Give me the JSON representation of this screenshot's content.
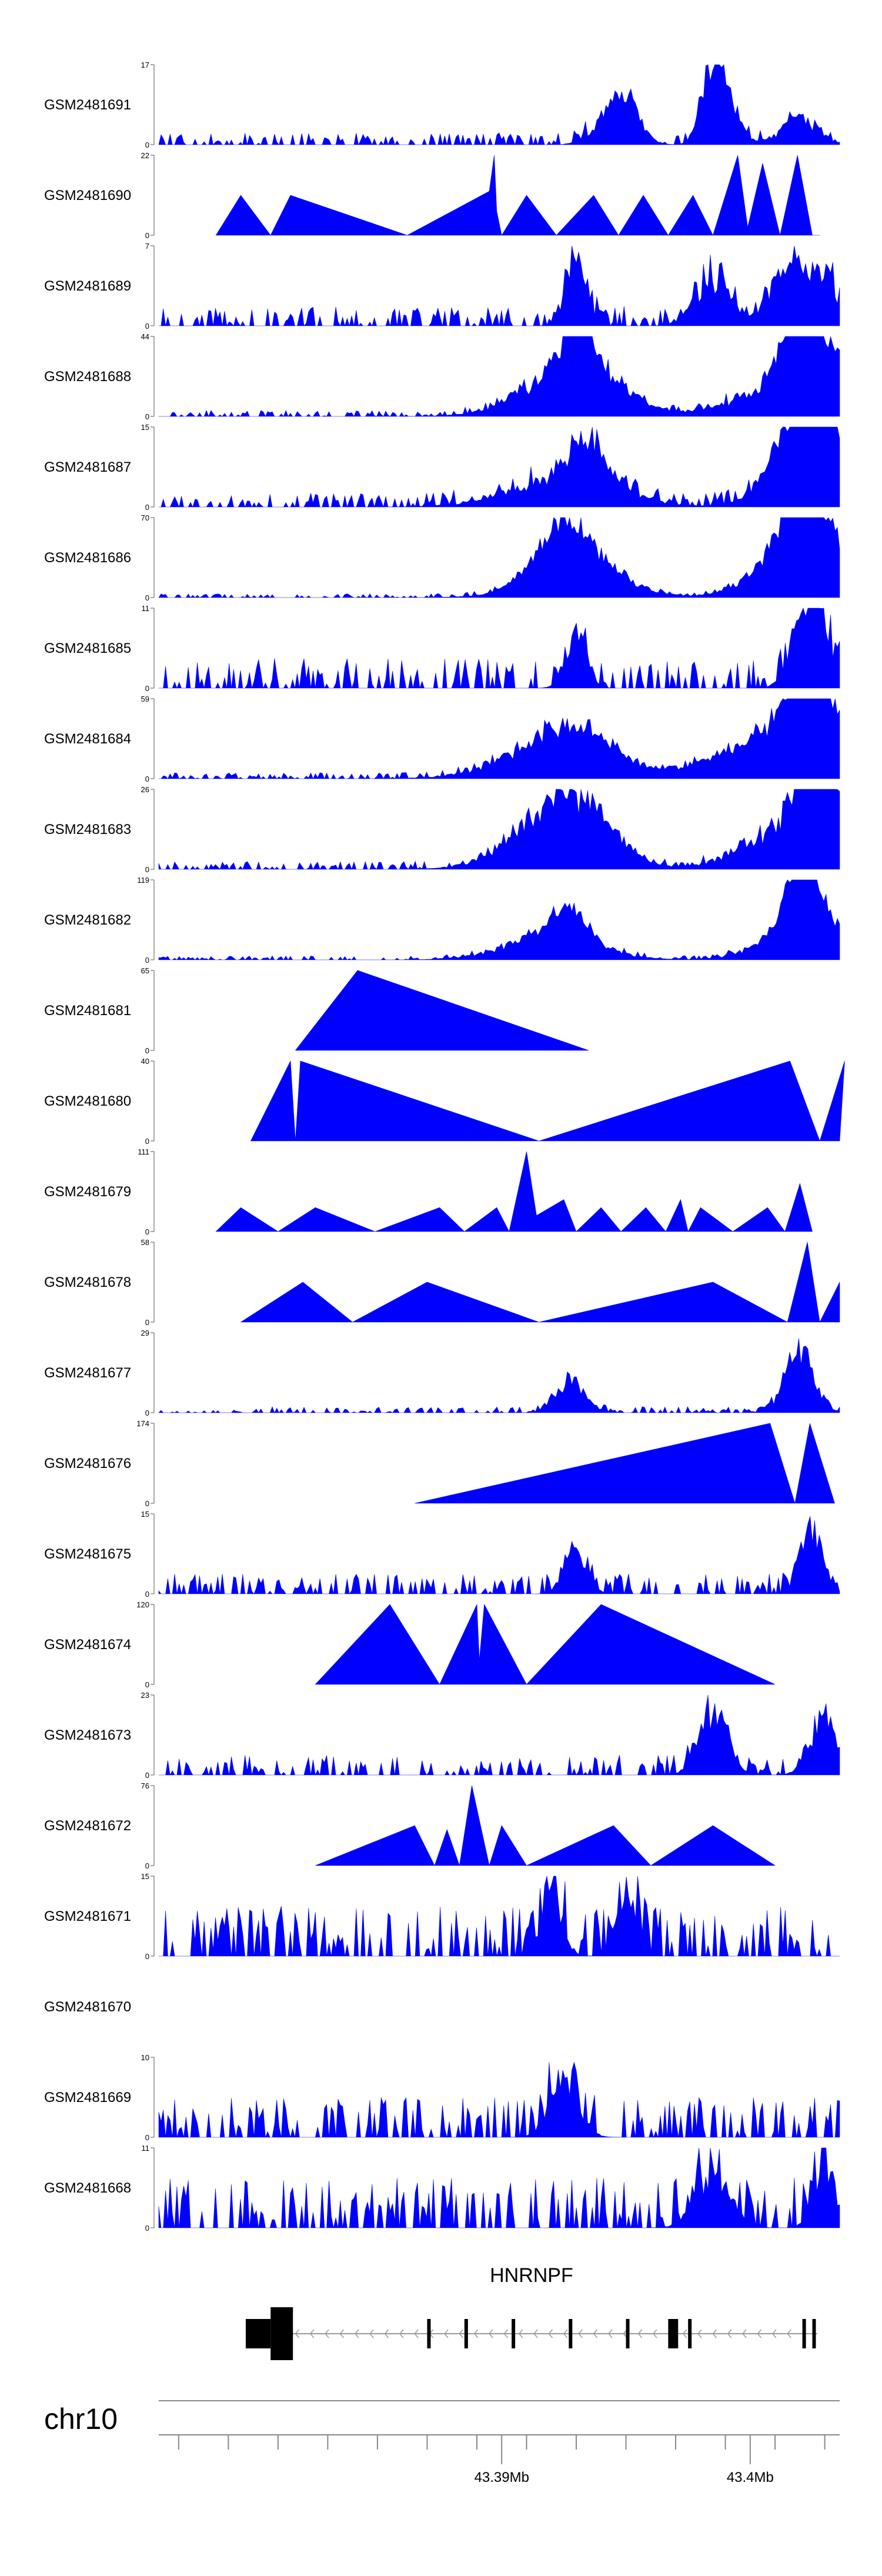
{
  "chart_data": {
    "type": "area",
    "title": "",
    "color": "#0000ff",
    "chromosome": "chr10",
    "gene": {
      "name": "HNRNPF",
      "strand": "-",
      "start_mb": 43.3797,
      "end_mb": 43.4027,
      "exons_mb": [
        [
          43.3797,
          43.3807
        ],
        [
          43.3807,
          43.3816
        ],
        [
          43.3885,
          43.3886
        ],
        [
          43.387,
          43.3871
        ],
        [
          43.3904,
          43.3905
        ],
        [
          43.3927,
          43.3928
        ],
        [
          43.395,
          43.3951
        ],
        [
          43.3967,
          43.3968
        ],
        [
          43.3968,
          43.3971
        ],
        [
          43.3975,
          43.3976
        ],
        [
          43.4021,
          43.4022
        ],
        [
          43.4025,
          43.4026
        ]
      ]
    },
    "genome_axis": {
      "range_mb": [
        43.3762,
        43.4036
      ],
      "tick_labels": [
        "43.39Mb",
        "43.4Mb"
      ],
      "labeled_ticks_mb": [
        43.39,
        43.4
      ],
      "minor_ticks_mb": [
        43.377,
        43.379,
        43.381,
        43.383,
        43.385,
        43.387,
        43.389,
        43.391,
        43.393,
        43.395,
        43.397,
        43.399,
        43.401,
        43.403
      ]
    },
    "tracks": [
      {
        "name": "GSM2481691",
        "ymax": 17,
        "ymin": 0,
        "kind": "noise",
        "seed": 11,
        "floor": 0.06,
        "peaks": [
          [
            43.3945,
            0.5,
            0.001
          ],
          [
            43.395,
            0.4,
            0.0008
          ],
          [
            43.3985,
            1.0,
            0.0006
          ],
          [
            43.399,
            0.55,
            0.0008
          ],
          [
            43.402,
            0.4,
            0.001
          ]
        ]
      },
      {
        "name": "GSM2481690",
        "ymax": 22,
        "ymin": 0,
        "kind": "poly",
        "pts": [
          [
            43.3785,
            0
          ],
          [
            43.3795,
            0.5
          ],
          [
            43.3807,
            0
          ],
          [
            43.3815,
            0.5
          ],
          [
            43.3862,
            0
          ],
          [
            43.3895,
            0.55
          ],
          [
            43.3897,
            1.0
          ],
          [
            43.3898,
            0.3
          ],
          [
            43.39,
            0
          ],
          [
            43.391,
            0.5
          ],
          [
            43.3922,
            0
          ],
          [
            43.3937,
            0.5
          ],
          [
            43.3947,
            0
          ],
          [
            43.3957,
            0.5
          ],
          [
            43.3967,
            0
          ],
          [
            43.3977,
            0.5
          ],
          [
            43.3985,
            0
          ],
          [
            43.3995,
            1.0
          ],
          [
            43.3999,
            0.1
          ],
          [
            43.4005,
            0.9
          ],
          [
            43.4012,
            0
          ],
          [
            43.4019,
            1.0
          ],
          [
            43.4025,
            0
          ],
          [
            43.4028,
            0
          ]
        ]
      },
      {
        "name": "GSM2481689",
        "ymax": 7,
        "ymin": 0,
        "kind": "noise",
        "seed": 23,
        "floor": 0.1,
        "peaks": [
          [
            43.393,
            1.0,
            0.0006
          ],
          [
            43.3985,
            0.7,
            0.001
          ],
          [
            43.4015,
            0.9,
            0.001
          ],
          [
            43.403,
            0.7,
            0.0008
          ]
        ]
      },
      {
        "name": "GSM2481688",
        "ymax": 44,
        "ymin": 0,
        "kind": "noise",
        "seed": 31,
        "floor": 0.03,
        "peaks": [
          [
            43.3925,
            0.6,
            0.0025
          ],
          [
            43.393,
            0.9,
            0.0008
          ],
          [
            43.394,
            0.3,
            0.002
          ],
          [
            43.401,
            0.4,
            0.0025
          ],
          [
            43.402,
            1.0,
            0.001
          ],
          [
            43.403,
            0.8,
            0.0015
          ]
        ]
      },
      {
        "name": "GSM2481687",
        "ymax": 15,
        "ymin": 0,
        "kind": "noise",
        "seed": 37,
        "floor": 0.07,
        "peaks": [
          [
            43.3925,
            0.45,
            0.003
          ],
          [
            43.3935,
            0.6,
            0.001
          ],
          [
            43.4015,
            0.6,
            0.0015
          ],
          [
            43.4025,
            1.0,
            0.0015
          ],
          [
            43.4032,
            0.7,
            0.001
          ]
        ]
      },
      {
        "name": "GSM2481686",
        "ymax": 70,
        "ymin": 0,
        "kind": "noise",
        "seed": 41,
        "floor": 0.02,
        "peaks": [
          [
            43.3925,
            0.7,
            0.0015
          ],
          [
            43.393,
            0.5,
            0.0025
          ],
          [
            43.4015,
            0.6,
            0.002
          ],
          [
            43.402,
            1.0,
            0.001
          ],
          [
            43.403,
            0.7,
            0.0015
          ]
        ]
      },
      {
        "name": "GSM2481685",
        "ymax": 11,
        "ymin": 0,
        "kind": "noise",
        "seed": 43,
        "floor": 0.15,
        "peaks": [
          [
            43.393,
            0.9,
            0.0006
          ],
          [
            43.4022,
            1.0,
            0.0008
          ],
          [
            43.403,
            0.6,
            0.001
          ]
        ]
      },
      {
        "name": "GSM2481684",
        "ymax": 59,
        "ymin": 0,
        "kind": "noise",
        "seed": 47,
        "floor": 0.03,
        "peaks": [
          [
            43.392,
            0.4,
            0.003
          ],
          [
            43.393,
            0.5,
            0.002
          ],
          [
            43.4,
            0.2,
            0.003
          ],
          [
            43.4015,
            0.5,
            0.003
          ],
          [
            43.4022,
            1.0,
            0.001
          ],
          [
            43.403,
            0.6,
            0.0015
          ]
        ]
      },
      {
        "name": "GSM2481683",
        "ymax": 26,
        "ymin": 0,
        "kind": "noise",
        "seed": 53,
        "floor": 0.04,
        "peaks": [
          [
            43.392,
            0.6,
            0.0025
          ],
          [
            43.393,
            0.7,
            0.002
          ],
          [
            43.4015,
            0.6,
            0.0025
          ],
          [
            43.4025,
            1.0,
            0.001
          ],
          [
            43.4032,
            0.8,
            0.001
          ]
        ]
      },
      {
        "name": "GSM2481682",
        "ymax": 119,
        "ymin": 0,
        "kind": "noise",
        "seed": 59,
        "floor": 0.02,
        "peaks": [
          [
            43.392,
            0.4,
            0.0025
          ],
          [
            43.3927,
            0.45,
            0.001
          ],
          [
            43.4015,
            0.3,
            0.002
          ],
          [
            43.402,
            1.0,
            0.0008
          ],
          [
            43.4028,
            0.6,
            0.0015
          ]
        ]
      },
      {
        "name": "GSM2481681",
        "ymax": 65,
        "ymin": 0,
        "kind": "poly",
        "pts": [
          [
            43.3817,
            0
          ],
          [
            43.3842,
            1.0
          ],
          [
            43.3935,
            0
          ]
        ]
      },
      {
        "name": "GSM2481680",
        "ymax": 40,
        "ymin": 0,
        "kind": "poly",
        "pts": [
          [
            43.3799,
            0
          ],
          [
            43.3815,
            1.0
          ],
          [
            43.3817,
            0
          ],
          [
            43.3819,
            1.0
          ],
          [
            43.3915,
            0
          ],
          [
            43.4016,
            1.0
          ],
          [
            43.4028,
            0
          ],
          [
            43.4038,
            1.0
          ],
          [
            43.4036,
            0
          ]
        ]
      },
      {
        "name": "GSM2481679",
        "ymax": 111,
        "ymin": 0,
        "kind": "poly",
        "pts": [
          [
            43.3785,
            0
          ],
          [
            43.3795,
            0.3
          ],
          [
            43.381,
            0
          ],
          [
            43.3825,
            0.3
          ],
          [
            43.3849,
            0
          ],
          [
            43.3875,
            0.3
          ],
          [
            43.3885,
            0
          ],
          [
            43.3898,
            0.3
          ],
          [
            43.3903,
            0
          ],
          [
            43.391,
            1.0
          ],
          [
            43.3914,
            0.2
          ],
          [
            43.3925,
            0.4
          ],
          [
            43.393,
            0
          ],
          [
            43.394,
            0.3
          ],
          [
            43.3948,
            0
          ],
          [
            43.3958,
            0.3
          ],
          [
            43.3966,
            0
          ],
          [
            43.3972,
            0.4
          ],
          [
            43.3975,
            0
          ],
          [
            43.398,
            0.3
          ],
          [
            43.3993,
            0
          ],
          [
            43.4007,
            0.3
          ],
          [
            43.4014,
            0
          ],
          [
            43.402,
            0.6
          ],
          [
            43.4025,
            0
          ]
        ]
      },
      {
        "name": "GSM2481678",
        "ymax": 58,
        "ymin": 0,
        "kind": "poly",
        "pts": [
          [
            43.3795,
            0
          ],
          [
            43.382,
            0.5
          ],
          [
            43.384,
            0
          ],
          [
            43.387,
            0.5
          ],
          [
            43.3915,
            0
          ],
          [
            43.3985,
            0.5
          ],
          [
            43.4015,
            0
          ],
          [
            43.4023,
            1.0
          ],
          [
            43.4028,
            0
          ],
          [
            43.4036,
            0.5
          ]
        ]
      },
      {
        "name": "GSM2481677",
        "ymax": 29,
        "ymin": 0,
        "kind": "noise",
        "seed": 67,
        "floor": 0.03,
        "peaks": [
          [
            43.3928,
            0.5,
            0.0008
          ],
          [
            43.402,
            1.0,
            0.0008
          ]
        ]
      },
      {
        "name": "GSM2481676",
        "ymax": 174,
        "ymin": 0,
        "kind": "poly",
        "pts": [
          [
            43.3865,
            0
          ],
          [
            43.4008,
            1.0
          ],
          [
            43.4018,
            0
          ],
          [
            43.4024,
            1.0
          ],
          [
            43.4034,
            0
          ]
        ]
      },
      {
        "name": "GSM2481675",
        "ymax": 15,
        "ymin": 0,
        "kind": "noise",
        "seed": 71,
        "floor": 0.1,
        "peaks": [
          [
            43.393,
            0.7,
            0.0006
          ],
          [
            43.4025,
            1.0,
            0.0006
          ]
        ]
      },
      {
        "name": "GSM2481674",
        "ymax": 120,
        "ymin": 0,
        "kind": "poly",
        "pts": [
          [
            43.3825,
            0
          ],
          [
            43.3855,
            1.0
          ],
          [
            43.3875,
            0
          ],
          [
            43.389,
            1.0
          ],
          [
            43.3891,
            0.3
          ],
          [
            43.3893,
            1.0
          ],
          [
            43.391,
            0
          ],
          [
            43.394,
            1.0
          ],
          [
            43.401,
            0
          ]
        ]
      },
      {
        "name": "GSM2481673",
        "ymax": 23,
        "ymin": 0,
        "kind": "noise",
        "seed": 73,
        "floor": 0.1,
        "peaks": [
          [
            43.3985,
            1.0,
            0.0008
          ],
          [
            43.403,
            0.8,
            0.0008
          ]
        ]
      },
      {
        "name": "GSM2481672",
        "ymax": 76,
        "ymin": 0,
        "kind": "poly",
        "pts": [
          [
            43.3825,
            0
          ],
          [
            43.3865,
            0.5
          ],
          [
            43.3873,
            0
          ],
          [
            43.3878,
            0.45
          ],
          [
            43.3883,
            0
          ],
          [
            43.3888,
            1.0
          ],
          [
            43.3895,
            0
          ],
          [
            43.39,
            0.5
          ],
          [
            43.391,
            0
          ],
          [
            43.3945,
            0.5
          ],
          [
            43.396,
            0
          ],
          [
            43.3985,
            0.5
          ],
          [
            43.401,
            0
          ]
        ]
      },
      {
        "name": "GSM2481671",
        "ymax": 15,
        "ymin": 0,
        "kind": "noise",
        "seed": 79,
        "floor": 0.25,
        "peaks": [
          [
            43.392,
            1.0,
            0.0006
          ],
          [
            43.395,
            1.0,
            0.0006
          ]
        ]
      },
      {
        "name": "GSM2481670",
        "ymax": null,
        "ymin": null,
        "kind": "empty"
      },
      {
        "name": "GSM2481669",
        "ymax": 10,
        "ymin": 0,
        "kind": "noise",
        "seed": 83,
        "floor": 0.2,
        "peaks": [
          [
            43.3925,
            1.0,
            0.0008
          ]
        ]
      },
      {
        "name": "GSM2481668",
        "ymax": 11,
        "ymin": 0,
        "kind": "noise",
        "seed": 89,
        "floor": 0.25,
        "peaks": [
          [
            43.3985,
            0.8,
            0.001
          ],
          [
            43.403,
            1.0,
            0.0006
          ]
        ]
      }
    ]
  }
}
